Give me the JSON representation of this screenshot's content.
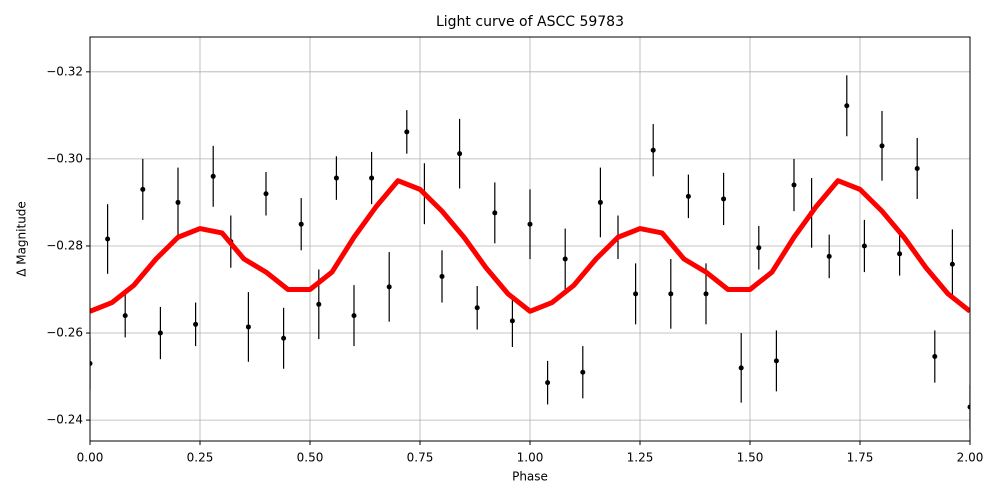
{
  "chart_data": {
    "type": "scatter",
    "title": "Light curve of ASCC 59783",
    "xlabel": "Phase",
    "ylabel": "Δ Magnitude",
    "xlim": [
      0,
      2
    ],
    "ylim": [
      -0.2352,
      -0.328
    ],
    "grid": true,
    "xticks": [
      {
        "value": 0,
        "label": "0.00"
      },
      {
        "value": 0.25,
        "label": "0.25"
      },
      {
        "value": 0.5,
        "label": "0.50"
      },
      {
        "value": 0.75,
        "label": "0.75"
      },
      {
        "value": 1,
        "label": "1.00"
      },
      {
        "value": 1.25,
        "label": "1.25"
      },
      {
        "value": 1.5,
        "label": "1.50"
      },
      {
        "value": 1.75,
        "label": "1.75"
      },
      {
        "value": 2,
        "label": "2.00"
      }
    ],
    "yticks": [
      {
        "value": -0.32,
        "label": "−0.32"
      },
      {
        "value": -0.3,
        "label": "−0.30"
      },
      {
        "value": -0.28,
        "label": "−0.28"
      },
      {
        "value": -0.26,
        "label": "−0.26"
      },
      {
        "value": -0.24,
        "label": "−0.24"
      }
    ],
    "series": [
      {
        "type": "errorbar",
        "color": "#000000",
        "x": [
          0,
          0.04,
          0.08,
          0.12,
          0.16,
          0.2,
          0.24,
          0.28,
          0.32,
          0.36,
          0.4,
          0.44,
          0.48,
          0.52,
          0.56,
          0.6,
          0.64,
          0.68,
          0.72,
          0.76,
          0.8,
          0.84,
          0.88,
          0.92,
          0.96,
          1,
          1.04,
          1.08,
          1.12,
          1.16,
          1.2,
          1.24,
          1.28,
          1.32,
          1.36,
          1.4,
          1.44,
          1.48,
          1.52,
          1.56,
          1.6,
          1.64,
          1.68,
          1.72,
          1.76,
          1.8,
          1.84,
          1.88,
          1.92,
          1.96,
          2
        ],
        "values": [
          -0.253,
          -0.2816,
          -0.264,
          -0.293,
          -0.26,
          -0.29,
          -0.262,
          -0.296,
          -0.281,
          -0.2614,
          -0.292,
          -0.2588,
          -0.285,
          -0.2666,
          -0.2956,
          -0.264,
          -0.2956,
          -0.2706,
          -0.3062,
          -0.292,
          -0.273,
          -0.3012,
          -0.2658,
          -0.2876,
          -0.2628,
          -0.285,
          -0.2486,
          -0.277,
          -0.251,
          -0.29,
          -0.282,
          -0.269,
          -0.302,
          -0.269,
          -0.2914,
          -0.269,
          -0.2908,
          -0.252,
          -0.2796,
          -0.2536,
          -0.294,
          -0.2876,
          -0.2776,
          -0.3122,
          -0.28,
          -0.303,
          -0.2782,
          -0.2978,
          -0.2546,
          -0.2758,
          -0.243
        ],
        "errors": [
          0.006,
          0.008,
          0.005,
          0.007,
          0.006,
          0.008,
          0.005,
          0.007,
          0.006,
          0.008,
          0.005,
          0.007,
          0.006,
          0.008,
          0.005,
          0.007,
          0.006,
          0.008,
          0.005,
          0.007,
          0.006,
          0.008,
          0.005,
          0.007,
          0.006,
          0.008,
          0.005,
          0.007,
          0.006,
          0.008,
          0.005,
          0.007,
          0.006,
          0.008,
          0.005,
          0.007,
          0.006,
          0.008,
          0.005,
          0.007,
          0.006,
          0.008,
          0.005,
          0.007,
          0.006,
          0.008,
          0.005,
          0.007,
          0.006,
          0.008,
          0.005
        ]
      },
      {
        "type": "line",
        "color": "#ff0000",
        "x": [
          0,
          0.05,
          0.1,
          0.15,
          0.2,
          0.25,
          0.3,
          0.35,
          0.4,
          0.45,
          0.5,
          0.55,
          0.6,
          0.65,
          0.7,
          0.75,
          0.8,
          0.85,
          0.9,
          0.95,
          1,
          1.05,
          1.1,
          1.15,
          1.2,
          1.25,
          1.3,
          1.35,
          1.4,
          1.45,
          1.5,
          1.55,
          1.6,
          1.65,
          1.7,
          1.75,
          1.8,
          1.85,
          1.9,
          1.95,
          2
        ],
        "values": [
          -0.265,
          -0.267,
          -0.271,
          -0.277,
          -0.282,
          -0.284,
          -0.283,
          -0.277,
          -0.274,
          -0.27,
          -0.27,
          -0.274,
          -0.282,
          -0.289,
          -0.295,
          -0.293,
          -0.288,
          -0.282,
          -0.275,
          -0.269,
          -0.265,
          -0.267,
          -0.271,
          -0.277,
          -0.282,
          -0.284,
          -0.283,
          -0.277,
          -0.274,
          -0.27,
          -0.27,
          -0.274,
          -0.282,
          -0.289,
          -0.295,
          -0.293,
          -0.288,
          -0.282,
          -0.275,
          -0.269,
          -0.265
        ]
      }
    ]
  }
}
